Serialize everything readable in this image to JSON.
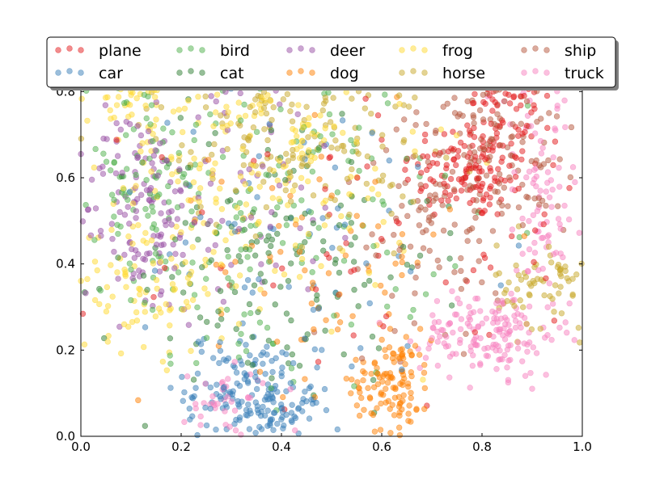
{
  "chart_data": {
    "type": "scatter",
    "title": "",
    "xlabel": "",
    "ylabel": "",
    "xlim": [
      0.0,
      1.0
    ],
    "ylim": [
      0.0,
      0.9
    ],
    "x_ticks": [
      "0.0",
      "0.2",
      "0.4",
      "0.6",
      "0.8",
      "1.0"
    ],
    "y_ticks": [
      "0.0",
      "0.2",
      "0.4",
      "0.6",
      "0.8"
    ],
    "grid": false,
    "legend_position": "top",
    "point_alpha": 0.5,
    "series": [
      {
        "name": "plane",
        "color": "#e41a1c",
        "clusters": [
          {
            "cx": 0.78,
            "cy": 0.62,
            "sx": 0.07,
            "sy": 0.06,
            "n": 140
          },
          {
            "cx": 0.86,
            "cy": 0.8,
            "sx": 0.05,
            "sy": 0.06,
            "n": 70
          },
          {
            "cx": 0.55,
            "cy": 0.45,
            "sx": 0.22,
            "sy": 0.2,
            "n": 60
          }
        ]
      },
      {
        "name": "car",
        "color": "#377eb8",
        "clusters": [
          {
            "cx": 0.33,
            "cy": 0.11,
            "sx": 0.06,
            "sy": 0.06,
            "n": 130
          },
          {
            "cx": 0.4,
            "cy": 0.05,
            "sx": 0.04,
            "sy": 0.03,
            "n": 50
          },
          {
            "cx": 0.45,
            "cy": 0.4,
            "sx": 0.22,
            "sy": 0.22,
            "n": 70
          }
        ]
      },
      {
        "name": "bird",
        "color": "#4daf4a",
        "clusters": [
          {
            "cx": 0.35,
            "cy": 0.5,
            "sx": 0.18,
            "sy": 0.2,
            "n": 180
          },
          {
            "cx": 0.12,
            "cy": 0.6,
            "sx": 0.07,
            "sy": 0.12,
            "n": 60
          }
        ]
      },
      {
        "name": "cat",
        "color": "#2e7d32",
        "clusters": [
          {
            "cx": 0.38,
            "cy": 0.42,
            "sx": 0.16,
            "sy": 0.18,
            "n": 150
          }
        ]
      },
      {
        "name": "deer",
        "color": "#984ea3",
        "clusters": [
          {
            "cx": 0.12,
            "cy": 0.52,
            "sx": 0.06,
            "sy": 0.12,
            "n": 120
          },
          {
            "cx": 0.3,
            "cy": 0.6,
            "sx": 0.14,
            "sy": 0.16,
            "n": 80
          }
        ]
      },
      {
        "name": "dog",
        "color": "#ff7f00",
        "clusters": [
          {
            "cx": 0.62,
            "cy": 0.13,
            "sx": 0.04,
            "sy": 0.06,
            "n": 120
          },
          {
            "cx": 0.5,
            "cy": 0.4,
            "sx": 0.12,
            "sy": 0.15,
            "n": 70
          }
        ]
      },
      {
        "name": "frog",
        "color": "#ffd92f",
        "clusters": [
          {
            "cx": 0.1,
            "cy": 0.83,
            "sx": 0.05,
            "sy": 0.04,
            "n": 90
          },
          {
            "cx": 0.35,
            "cy": 0.65,
            "sx": 0.16,
            "sy": 0.18,
            "n": 220
          },
          {
            "cx": 0.13,
            "cy": 0.35,
            "sx": 0.07,
            "sy": 0.08,
            "n": 80
          }
        ]
      },
      {
        "name": "horse",
        "color": "#c8a828",
        "clusters": [
          {
            "cx": 0.42,
            "cy": 0.72,
            "sx": 0.14,
            "sy": 0.12,
            "n": 180
          },
          {
            "cx": 0.93,
            "cy": 0.35,
            "sx": 0.05,
            "sy": 0.05,
            "n": 70
          }
        ]
      },
      {
        "name": "ship",
        "color": "#b5563c",
        "clusters": [
          {
            "cx": 0.82,
            "cy": 0.68,
            "sx": 0.08,
            "sy": 0.12,
            "n": 160
          },
          {
            "cx": 0.68,
            "cy": 0.45,
            "sx": 0.08,
            "sy": 0.12,
            "n": 60
          }
        ]
      },
      {
        "name": "truck",
        "color": "#f781bf",
        "clusters": [
          {
            "cx": 0.82,
            "cy": 0.24,
            "sx": 0.07,
            "sy": 0.05,
            "n": 160
          },
          {
            "cx": 0.92,
            "cy": 0.55,
            "sx": 0.05,
            "sy": 0.15,
            "n": 90
          },
          {
            "cx": 0.3,
            "cy": 0.08,
            "sx": 0.05,
            "sy": 0.05,
            "n": 40
          }
        ]
      }
    ]
  }
}
